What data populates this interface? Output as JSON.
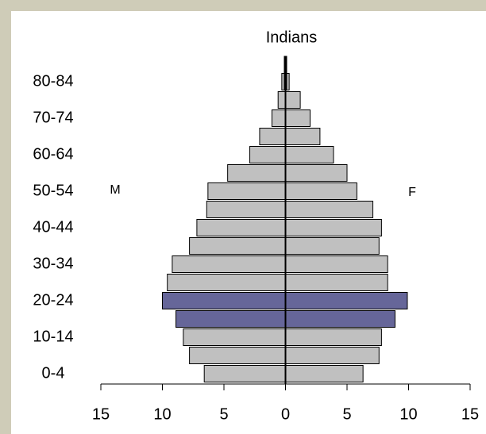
{
  "chart_data": {
    "type": "pyramid",
    "title": "Indians",
    "categories": [
      "0-4",
      null,
      "10-14",
      null,
      "20-24",
      null,
      "30-34",
      null,
      "40-44",
      null,
      "50-54",
      null,
      "60-64",
      null,
      "70-74",
      null,
      "80-84"
    ],
    "series": [
      {
        "name": "M",
        "side": "left",
        "color": "#c0c0c0",
        "colors": [
          "#c0c0c0",
          "#c0c0c0",
          "#c0c0c0",
          "#666699",
          "#666699",
          "#c0c0c0",
          "#c0c0c0",
          "#c0c0c0",
          "#c0c0c0",
          "#c0c0c0",
          "#c0c0c0",
          "#c0c0c0",
          "#c0c0c0",
          "#c0c0c0",
          "#c0c0c0",
          "#c0c0c0",
          "#c0c0c0"
        ],
        "values": [
          6.6,
          7.8,
          8.3,
          8.9,
          10.0,
          9.6,
          9.2,
          7.8,
          7.2,
          6.4,
          6.3,
          4.7,
          2.9,
          2.1,
          1.1,
          0.6,
          0.3
        ]
      },
      {
        "name": "F",
        "side": "right",
        "color": "#c0c0c0",
        "colors": [
          "#c0c0c0",
          "#c0c0c0",
          "#c0c0c0",
          "#666699",
          "#666699",
          "#c0c0c0",
          "#c0c0c0",
          "#c0c0c0",
          "#c0c0c0",
          "#c0c0c0",
          "#c0c0c0",
          "#c0c0c0",
          "#c0c0c0",
          "#c0c0c0",
          "#c0c0c0",
          "#c0c0c0",
          "#c0c0c0"
        ],
        "values": [
          6.3,
          7.6,
          7.8,
          8.9,
          9.9,
          8.3,
          8.3,
          7.6,
          7.8,
          7.1,
          5.8,
          5.0,
          3.9,
          2.8,
          2.0,
          1.2,
          0.3
        ]
      }
    ],
    "xlim": [
      -15,
      15
    ],
    "xticks": [
      {
        "value": -15,
        "label": "15"
      },
      {
        "value": -10,
        "label": "10"
      },
      {
        "value": -5,
        "label": "5"
      },
      0,
      5,
      10,
      15
    ]
  }
}
